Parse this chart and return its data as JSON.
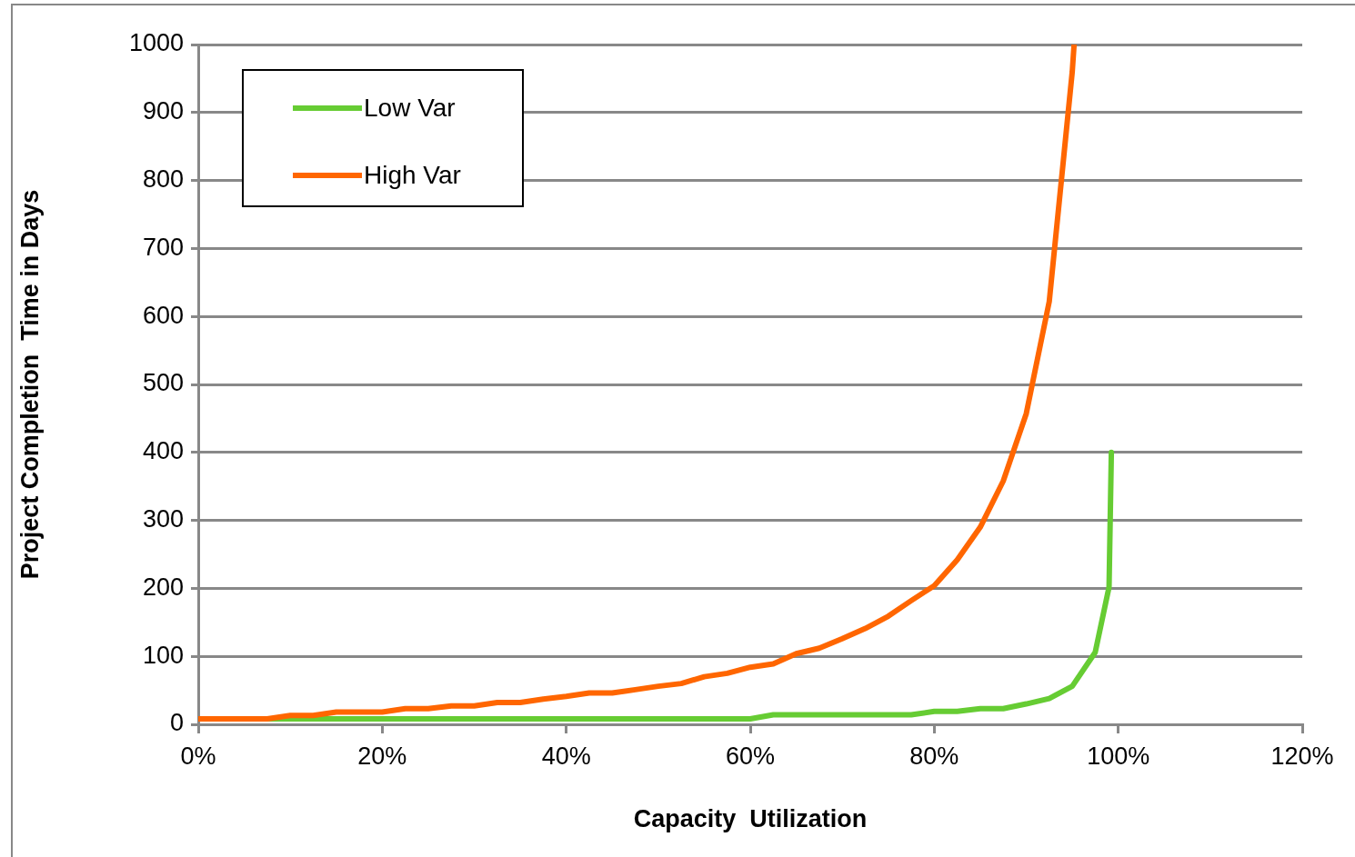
{
  "chart_data": {
    "type": "line",
    "xlabel": "Capacity  Utilization",
    "ylabel": "Project Completion  Time in Days",
    "xlim": [
      0,
      120
    ],
    "xticks": [
      {
        "value": 0,
        "label": "0%"
      },
      {
        "value": 20,
        "label": "20%"
      },
      {
        "value": 40,
        "label": "40%"
      },
      {
        "value": 60,
        "label": "60%"
      },
      {
        "value": 80,
        "label": "80%"
      },
      {
        "value": 100,
        "label": "100%"
      },
      {
        "value": 120,
        "label": "120%"
      }
    ],
    "ylim": [
      0,
      1000
    ],
    "yticks": [
      0,
      100,
      200,
      300,
      400,
      500,
      600,
      700,
      800,
      900,
      1000
    ],
    "grid": "y",
    "legend": "top left",
    "marker": "none",
    "line_style": "solid",
    "series": [
      {
        "name": "Low Var",
        "color": "#66cc33",
        "x": [
          5,
          7.5,
          10,
          12.5,
          15,
          17.5,
          20,
          22.5,
          25,
          27.5,
          30,
          32.5,
          35,
          37.5,
          40,
          42.5,
          45,
          47.5,
          50,
          52.5,
          55,
          57.5,
          60,
          62.5,
          65,
          67.5,
          70,
          72.5,
          75,
          77.5,
          80,
          82.5,
          85,
          87.5,
          90,
          92.5,
          95,
          97.5,
          99,
          99.25
        ],
        "values": [
          8,
          8,
          8,
          8,
          8,
          8,
          8,
          8,
          8,
          8,
          8,
          8,
          8,
          8,
          8,
          8,
          8,
          8,
          8,
          8,
          8,
          8,
          8,
          14,
          14,
          14,
          14,
          14,
          14,
          14,
          19,
          19,
          23,
          23,
          30,
          38,
          56,
          106,
          202,
          400
        ]
      },
      {
        "name": "High Var",
        "color": "#ff6600",
        "x": [
          0,
          2.5,
          5,
          7.5,
          10,
          12.5,
          15,
          17.5,
          20,
          22.5,
          25,
          27.5,
          30,
          32.5,
          35,
          37.5,
          40,
          42.5,
          45,
          47.5,
          50,
          52.5,
          55,
          57.5,
          60,
          62.5,
          65,
          67.5,
          70,
          72.5,
          75,
          77.5,
          80,
          82.5,
          85,
          87.5,
          90,
          92.5,
          95,
          95.2
        ],
        "values": [
          8,
          8,
          8,
          8,
          13,
          13,
          18,
          18,
          18,
          23,
          23,
          27,
          27,
          32,
          32,
          37,
          41,
          46,
          46,
          51,
          56,
          60,
          70,
          75,
          84,
          89,
          104,
          112,
          126,
          141,
          159,
          182,
          204,
          242,
          290,
          358,
          457,
          622,
          960,
          1000
        ]
      }
    ]
  }
}
